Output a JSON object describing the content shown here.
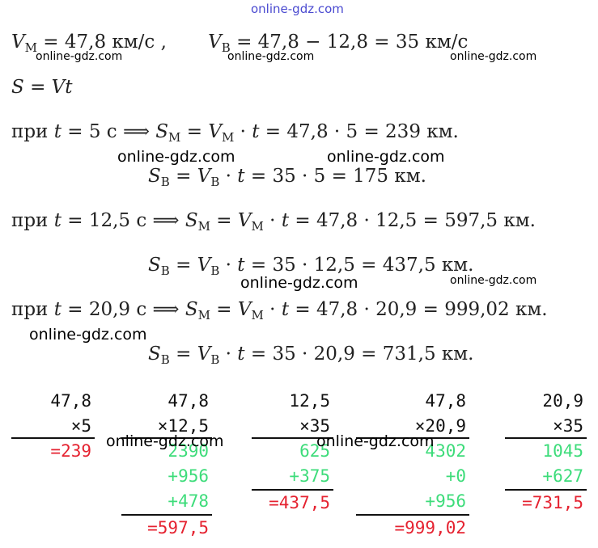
{
  "lines": [
    [
      {
        "italic": "V"
      },
      {
        "sub": "М"
      },
      {
        "text": " = 47,8 км/с ,       "
      },
      {
        "italic": "V"
      },
      {
        "sub": "В"
      },
      {
        "text": " = 47,8 − 12,8 = 35 км/с"
      }
    ],
    [
      {
        "italic": "S"
      },
      {
        "text": " = "
      },
      {
        "italic": "Vt"
      }
    ],
    [
      {
        "text": "при "
      },
      {
        "italic": "t"
      },
      {
        "text": " = 5 с ⟹ "
      },
      {
        "italic": "S"
      },
      {
        "sub": "М"
      },
      {
        "text": " = "
      },
      {
        "italic": "V"
      },
      {
        "sub": "М"
      },
      {
        "text": " · "
      },
      {
        "italic": "t"
      },
      {
        "text": " = 47,8 · 5 = 239 км."
      }
    ],
    [
      {
        "italic": "S"
      },
      {
        "sub": "В"
      },
      {
        "text": " = "
      },
      {
        "italic": "V"
      },
      {
        "sub": "В"
      },
      {
        "text": " · "
      },
      {
        "italic": "t"
      },
      {
        "text": " = 35 · 5 = 175 км."
      }
    ],
    [
      {
        "text": "при "
      },
      {
        "italic": "t"
      },
      {
        "text": " = 12,5 с ⟹ "
      },
      {
        "italic": "S"
      },
      {
        "sub": "М"
      },
      {
        "text": " = "
      },
      {
        "italic": "V"
      },
      {
        "sub": "М"
      },
      {
        "text": " · "
      },
      {
        "italic": "t"
      },
      {
        "text": " = 47,8 · 12,5 = 597,5 км."
      }
    ],
    [
      {
        "italic": "S"
      },
      {
        "sub": "В"
      },
      {
        "text": " = "
      },
      {
        "italic": "V"
      },
      {
        "sub": "В"
      },
      {
        "text": " · "
      },
      {
        "italic": "t"
      },
      {
        "text": " = 35 · 12,5 = 437,5 км."
      }
    ],
    [
      {
        "text": "при "
      },
      {
        "italic": "t"
      },
      {
        "text": " = 20,9 с ⟹ "
      },
      {
        "italic": "S"
      },
      {
        "sub": "М"
      },
      {
        "text": " = "
      },
      {
        "italic": "V"
      },
      {
        "sub": "М"
      },
      {
        "text": " · "
      },
      {
        "italic": "t"
      },
      {
        "text": " = 47,8 · 20,9 = 999,02 км."
      }
    ],
    [
      {
        "italic": "S"
      },
      {
        "sub": "В"
      },
      {
        "text": " = "
      },
      {
        "italic": "V"
      },
      {
        "sub": "В"
      },
      {
        "text": " · "
      },
      {
        "italic": "t"
      },
      {
        "text": " = 35 · 20,9 = 731,5 км."
      }
    ]
  ],
  "columns": [
    {
      "a": "47,8",
      "b": "×5",
      "partials": [],
      "result": "=239"
    },
    {
      "a": "47,8",
      "b": "×12,5",
      "partials": [
        "2390",
        "+956",
        "+478"
      ],
      "result": "=597,5"
    },
    {
      "a": "12,5",
      "b": "×35",
      "partials": [
        "625",
        "+375"
      ],
      "result": "=437,5"
    },
    {
      "a": "47,8",
      "b": "×20,9",
      "partials": [
        "4302",
        "+0",
        "+956"
      ],
      "result": "=999,02"
    },
    {
      "a": "20,9",
      "b": "×35",
      "partials": [
        "1045",
        "+627"
      ],
      "result": "=731,5"
    }
  ],
  "watermarks": [
    "online-gdz.com",
    "online-gdz.com",
    "online-gdz.com",
    "online-gdz.com",
    "online-gdz.com",
    "online-gdz.com",
    "online-gdz.com",
    "online-gdz.com",
    "online-gdz.com",
    "online-gdz.com",
    "online-gdz.com"
  ]
}
